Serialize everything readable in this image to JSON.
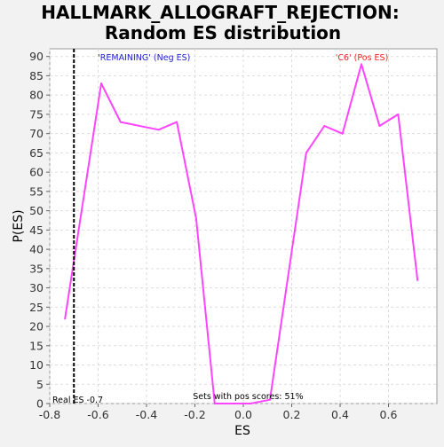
{
  "chart_data": {
    "type": "line",
    "title_lines": [
      "HALLMARK_ALLOGRAFT_REJECTION:",
      "Random ES distribution"
    ],
    "xlabel": "ES",
    "ylabel": "P(ES)",
    "xlim": [
      -0.8,
      0.8
    ],
    "ylim": [
      0,
      92
    ],
    "x_ticks": [
      -0.8,
      -0.6,
      -0.4,
      -0.2,
      0.0,
      0.2,
      0.4,
      0.6
    ],
    "x_tick_labels": [
      "-0.8",
      "-0.6",
      "-0.4",
      "-0.2",
      "0.0",
      "0.2",
      "0.4",
      "0.6"
    ],
    "y_ticks": [
      0,
      5,
      10,
      15,
      20,
      25,
      30,
      35,
      40,
      45,
      50,
      55,
      60,
      65,
      70,
      75,
      80,
      85,
      90
    ],
    "y_tick_labels": [
      "0",
      "5",
      "10",
      "15",
      "20",
      "25",
      "30",
      "35",
      "40",
      "45",
      "50",
      "55",
      "60",
      "65",
      "70",
      "75",
      "80",
      "85",
      "90"
    ],
    "grid": true,
    "series": [
      {
        "color": "#ff44ff",
        "x": [
          -0.737,
          -0.587,
          -0.507,
          -0.35,
          -0.275,
          -0.195,
          -0.118,
          -0.04,
          0.03,
          0.11,
          0.26,
          0.335,
          0.41,
          0.488,
          0.563,
          0.64,
          0.72
        ],
        "y": [
          22,
          83,
          73,
          71,
          73,
          48,
          0,
          0,
          0,
          1,
          65,
          72,
          70,
          88,
          72,
          75,
          32
        ]
      }
    ],
    "real_es": -0.7,
    "real_es_label": "Real ES -0.7",
    "neg_label": "'REMAINING' (Neg ES)",
    "neg_color": "#2222cc",
    "pos_label": "'C6' (Pos ES)",
    "pos_color": "#ee2222",
    "footnote": "Sets with pos scores: 51%"
  }
}
